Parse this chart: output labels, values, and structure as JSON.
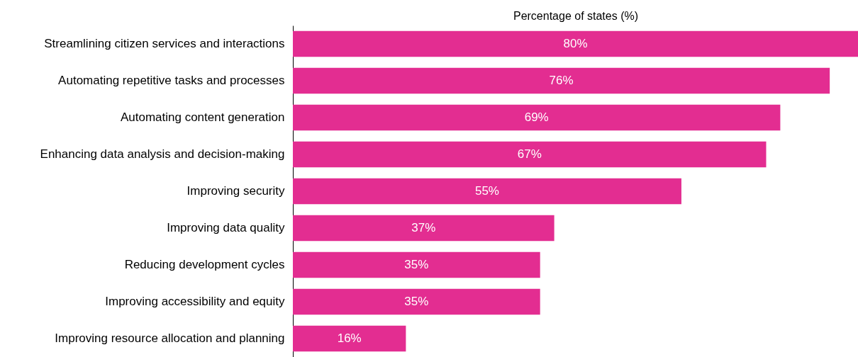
{
  "chart_data": {
    "type": "bar",
    "orientation": "horizontal",
    "xlabel": "Percentage of states (%)",
    "categories": [
      "Streamlining citizen services and interactions",
      "Automating repetitive tasks and processes",
      "Automating content generation",
      "Enhancing data analysis and decision-making",
      "Improving security",
      "Improving data quality",
      "Reducing development cycles",
      "Improving accessibility and equity",
      "Improving resource allocation and planning"
    ],
    "values": [
      80,
      76,
      69,
      67,
      55,
      37,
      35,
      35,
      16
    ],
    "value_labels": [
      "80%",
      "76%",
      "69%",
      "67%",
      "55%",
      "37%",
      "35%",
      "35%",
      "16%"
    ],
    "color": "#e32d91"
  }
}
